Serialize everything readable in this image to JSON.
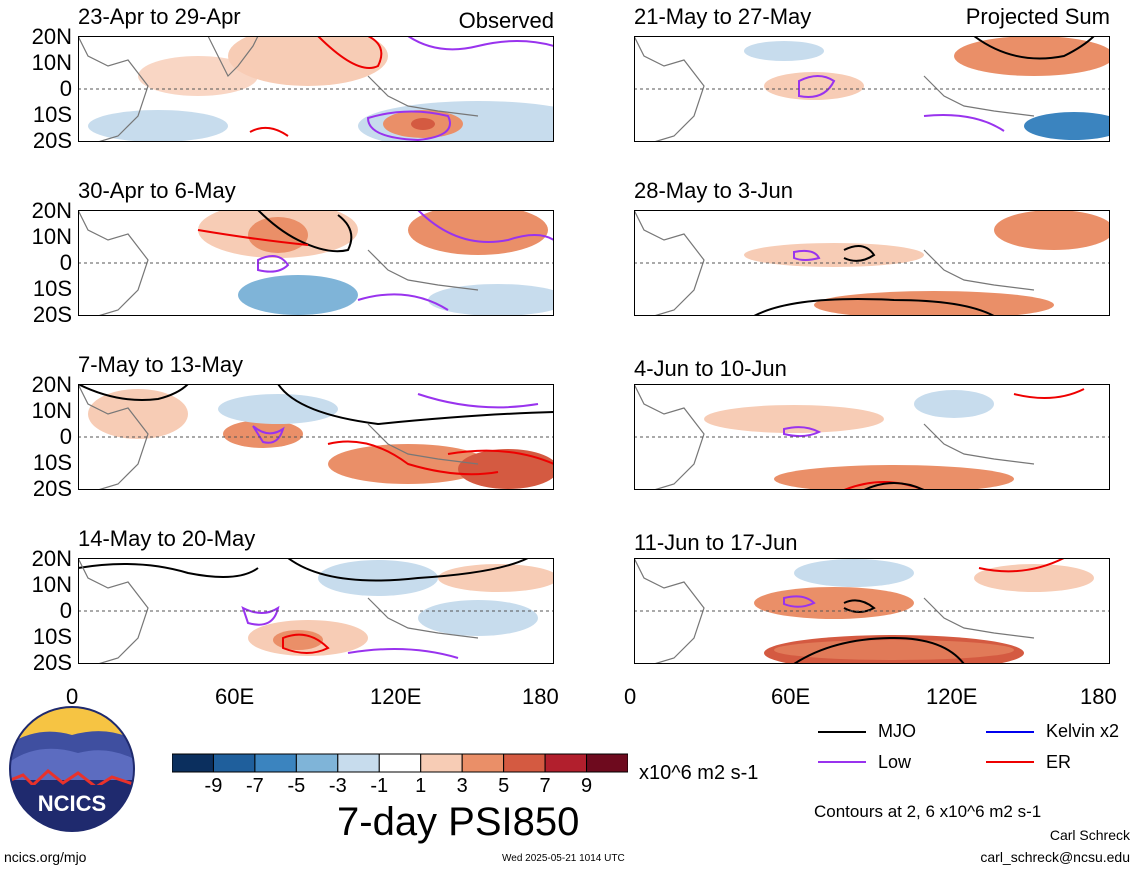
{
  "header": {
    "observed_label": "Observed",
    "projected_label": "Projected Sum"
  },
  "panels_left": [
    {
      "title": "23-Apr to 29-Apr"
    },
    {
      "title": "30-Apr to 6-May"
    },
    {
      "title": "7-May to 13-May"
    },
    {
      "title": "14-May to 20-May"
    }
  ],
  "panels_right": [
    {
      "title": "21-May to 27-May"
    },
    {
      "title": "28-May to 3-Jun"
    },
    {
      "title": "4-Jun to 10-Jun"
    },
    {
      "title": "11-Jun to 17-Jun"
    }
  ],
  "axes": {
    "lat_labels": [
      "20N",
      "10N",
      "0",
      "10S",
      "20S"
    ],
    "lon_labels": [
      "0",
      "60E",
      "120E",
      "180"
    ]
  },
  "colorbar": {
    "labels": [
      "-9",
      "-7",
      "-5",
      "-3",
      "-1",
      "1",
      "3",
      "5",
      "7",
      "9"
    ],
    "colors": [
      "#0b2f5e",
      "#1f5f9c",
      "#3b84bf",
      "#7fb4d8",
      "#c7dced",
      "#ffffff",
      "#f7ccb5",
      "#ea8f68",
      "#d45a41",
      "#b21f2d",
      "#6e0a1e"
    ],
    "units": "x10^6 m2 s-1"
  },
  "chart_title": "7-day PSI850",
  "legend": {
    "items": [
      {
        "label": "MJO",
        "color": "#000000"
      },
      {
        "label": "Kelvin x2",
        "color": "#0000ee"
      },
      {
        "label": "Low",
        "color": "#9933ee"
      },
      {
        "label": "ER",
        "color": "#ee0000"
      }
    ],
    "contours_note": "Contours at 2, 6 x10^6 m2 s-1"
  },
  "footer": {
    "logo_text": "NCICS",
    "url": "ncics.org/mjo",
    "timestamp": "Wed 2025-05-21 1014 UTC",
    "author": "Carl Schreck",
    "email": "carl_schreck@ncsu.edu"
  }
}
